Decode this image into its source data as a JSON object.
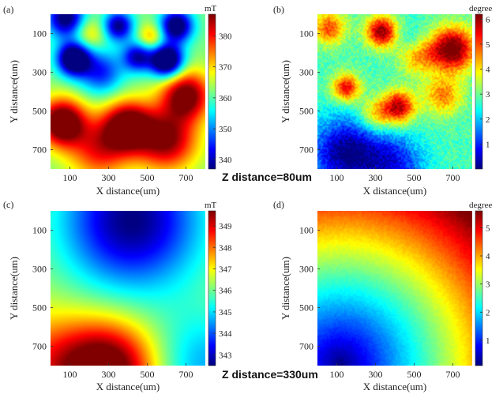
{
  "figure": {
    "captions": [
      "Z distance=80um",
      "Z distance=330um"
    ]
  },
  "chart_data": [
    {
      "type": "heatmap",
      "panel_label": "(a)",
      "xlabel": "X distance(um)",
      "ylabel": "Y distance(um)",
      "xticks": [
        100,
        300,
        500,
        700
      ],
      "yticks": [
        100,
        300,
        500,
        700
      ],
      "xlim": [
        0,
        800
      ],
      "ylim": [
        800,
        0
      ],
      "colorbar": {
        "unit": "mT",
        "ticks": [
          340,
          350,
          360,
          370,
          380
        ],
        "range": [
          337,
          387
        ],
        "colormap": "jet"
      },
      "field": {
        "base": 0.5,
        "blobs": [
          {
            "x": 80,
            "y": 20,
            "w": -0.55,
            "s": 70
          },
          {
            "x": 120,
            "y": 230,
            "w": -0.7,
            "s": 60
          },
          {
            "x": 260,
            "y": 300,
            "w": -0.35,
            "s": 80
          },
          {
            "x": 350,
            "y": 60,
            "w": -0.5,
            "s": 55
          },
          {
            "x": 450,
            "y": 220,
            "w": -0.45,
            "s": 55
          },
          {
            "x": 600,
            "y": 240,
            "w": -0.75,
            "s": 60
          },
          {
            "x": 650,
            "y": 60,
            "w": -0.6,
            "s": 60
          },
          {
            "x": 700,
            "y": 420,
            "w": 0.55,
            "s": 90
          },
          {
            "x": 60,
            "y": 560,
            "w": 0.65,
            "s": 85
          },
          {
            "x": 400,
            "y": 580,
            "w": 0.6,
            "s": 90
          },
          {
            "x": 600,
            "y": 650,
            "w": 0.5,
            "s": 110
          },
          {
            "x": 250,
            "y": 700,
            "w": 0.35,
            "s": 110
          },
          {
            "x": 520,
            "y": 120,
            "w": 0.25,
            "s": 50
          },
          {
            "x": 200,
            "y": 100,
            "w": 0.2,
            "s": 60
          }
        ]
      }
    },
    {
      "type": "heatmap",
      "panel_label": "(b)",
      "xlabel": "X distance(um)",
      "ylabel": "Y distance(um)",
      "xticks": [
        100,
        300,
        500,
        700
      ],
      "yticks": [
        100,
        300,
        500,
        700
      ],
      "xlim": [
        0,
        800
      ],
      "ylim": [
        800,
        0
      ],
      "colorbar": {
        "unit": "degree",
        "ticks": [
          1,
          2,
          3,
          4,
          5,
          6
        ],
        "range": [
          0,
          6.2
        ],
        "colormap": "jet"
      },
      "field": {
        "base": 0.45,
        "blobs": [
          {
            "x": 330,
            "y": 90,
            "w": 0.55,
            "s": 55
          },
          {
            "x": 60,
            "y": 70,
            "w": 0.35,
            "s": 60
          },
          {
            "x": 700,
            "y": 180,
            "w": 0.6,
            "s": 80
          },
          {
            "x": 520,
            "y": 200,
            "w": 0.35,
            "s": 70
          },
          {
            "x": 150,
            "y": 380,
            "w": 0.45,
            "s": 50
          },
          {
            "x": 420,
            "y": 480,
            "w": 0.5,
            "s": 60
          },
          {
            "x": 300,
            "y": 520,
            "w": 0.25,
            "s": 60
          },
          {
            "x": 650,
            "y": 420,
            "w": 0.3,
            "s": 70
          },
          {
            "x": 150,
            "y": 720,
            "w": -0.45,
            "s": 130
          },
          {
            "x": 400,
            "y": 780,
            "w": -0.3,
            "s": 110
          },
          {
            "x": 500,
            "y": 150,
            "w": -0.2,
            "s": 60
          }
        ],
        "noise": 0.12
      }
    },
    {
      "type": "heatmap",
      "panel_label": "(c)",
      "xlabel": "X distance(um)",
      "ylabel": "Y distance(um)",
      "xticks": [
        100,
        300,
        500,
        700
      ],
      "yticks": [
        100,
        300,
        500,
        700
      ],
      "xlim": [
        0,
        800
      ],
      "ylim": [
        800,
        0
      ],
      "colorbar": {
        "unit": "mT",
        "ticks": [
          343,
          344,
          345,
          346,
          347,
          348,
          349
        ],
        "range": [
          342.5,
          349.7
        ],
        "colormap": "jet"
      },
      "field": {
        "base": 0.55,
        "blobs": [
          {
            "x": 420,
            "y": 50,
            "w": -0.55,
            "s": 260
          },
          {
            "x": 300,
            "y": 820,
            "w": 0.55,
            "s": 170
          },
          {
            "x": 0,
            "y": 800,
            "w": 0.25,
            "s": 180
          },
          {
            "x": 800,
            "y": 800,
            "w": -0.25,
            "s": 200
          }
        ]
      }
    },
    {
      "type": "heatmap",
      "panel_label": "(d)",
      "xlabel": "X distance(um)",
      "ylabel": "Y distance(um)",
      "xticks": [
        100,
        300,
        500,
        700
      ],
      "yticks": [
        100,
        300,
        500,
        700
      ],
      "xlim": [
        0,
        800
      ],
      "ylim": [
        800,
        0
      ],
      "colorbar": {
        "unit": "degree",
        "ticks": [
          1,
          2,
          3,
          4,
          5
        ],
        "range": [
          0.1,
          5.6
        ],
        "colormap": "jet"
      },
      "field": {
        "radial": {
          "cx": 120,
          "cy": 790,
          "rmax": 1000
        },
        "noise": 0.03
      }
    }
  ]
}
